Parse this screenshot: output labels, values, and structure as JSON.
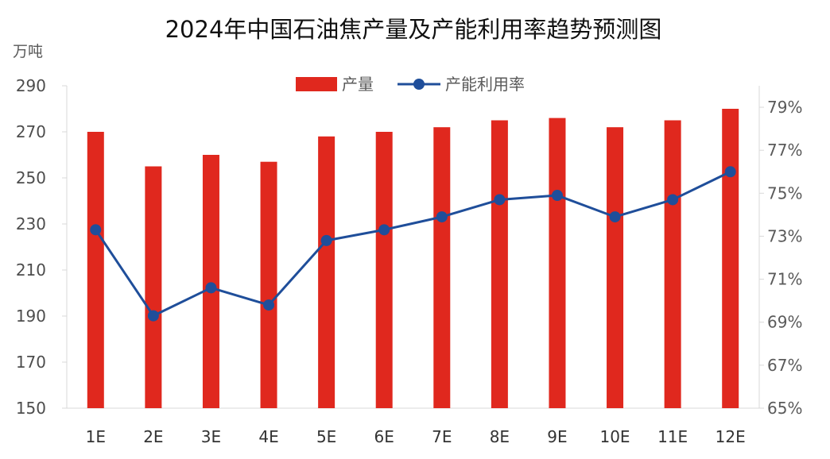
{
  "chart_data": {
    "type": "bar+line",
    "title": "2024年中国石油焦产量及产能利用率趋势预测图",
    "ylabel_left": "万吨",
    "categories": [
      "1E",
      "2E",
      "3E",
      "4E",
      "5E",
      "6E",
      "7E",
      "8E",
      "9E",
      "10E",
      "11E",
      "12E"
    ],
    "series": [
      {
        "name": "产量",
        "type": "bar",
        "axis": "left",
        "color": "#e0281e",
        "values": [
          270,
          255,
          260,
          257,
          268,
          270,
          272,
          275,
          276,
          272,
          275,
          280
        ]
      },
      {
        "name": "产能利用率",
        "type": "line",
        "axis": "right",
        "color": "#1f4e9a",
        "values": [
          73.3,
          69.3,
          70.6,
          69.8,
          72.8,
          73.3,
          73.9,
          74.7,
          74.9,
          73.9,
          74.7,
          76.0
        ]
      }
    ],
    "left_axis": {
      "min": 150,
      "max": 290,
      "ticks": [
        150,
        170,
        190,
        210,
        230,
        250,
        270,
        290
      ]
    },
    "right_axis": {
      "min": 65,
      "max": 80,
      "ticks": [
        "65%",
        "67%",
        "69%",
        "71%",
        "73%",
        "75%",
        "77%",
        "79%"
      ],
      "tick_values": [
        65,
        67,
        69,
        71,
        73,
        75,
        77,
        79
      ]
    },
    "legend_placement": "top-center",
    "grid": false
  }
}
